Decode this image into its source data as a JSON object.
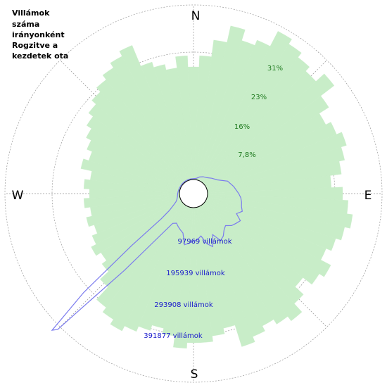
{
  "chart_data": {
    "type": "polar",
    "title_lines": [
      "Villámok",
      "száma",
      "irányonként",
      "Rogzitve a",
      "kezdetek ota"
    ],
    "directions": [
      "N",
      "E",
      "S",
      "W"
    ],
    "percent_ring_labels": [
      "7,8%",
      "16%",
      "23%",
      "31%"
    ],
    "count_ring_labels": [
      "97969 villámok",
      "195939 villámok",
      "293908 villámok",
      "391877 villámok"
    ],
    "percent_ring_values": [
      7.8,
      16,
      23,
      31
    ],
    "count_ring_values": [
      97969,
      195939,
      293908,
      391877
    ],
    "colors": {
      "percent_fill": "#c8edc8",
      "percent_label": "#1e7a1e",
      "count_line": "#7b7bee",
      "count_label": "#1a1acc",
      "grid": "#999999"
    },
    "grid": true,
    "series": [
      {
        "name": "",
        "kind": "percent-area",
        "angle_step_deg": 5,
        "angles_deg": [
          0,
          5,
          10,
          15,
          20,
          25,
          30,
          35,
          40,
          45,
          50,
          55,
          60,
          65,
          70,
          75,
          80,
          85,
          90,
          95,
          100,
          105,
          110,
          115,
          120,
          125,
          130,
          135,
          140,
          145,
          150,
          155,
          160,
          165,
          170,
          175,
          180,
          185,
          190,
          195,
          200,
          205,
          210,
          215,
          220,
          225,
          230,
          235,
          240,
          245,
          250,
          255,
          260,
          265,
          270,
          275,
          280,
          285,
          290,
          295,
          300,
          305,
          310,
          315,
          320,
          325,
          330,
          335,
          340,
          345,
          350,
          355
        ],
        "values": [
          20,
          22,
          25,
          28,
          26,
          27,
          30,
          29,
          28,
          27,
          29,
          26,
          24,
          25,
          26,
          25,
          24,
          22,
          24,
          25,
          26,
          25,
          24,
          23,
          25,
          24,
          22,
          24,
          26,
          25,
          24,
          25,
          26,
          22,
          23,
          24,
          24,
          25,
          23,
          22,
          23,
          24,
          25,
          24,
          23,
          20,
          18,
          17,
          18,
          17,
          16,
          17,
          16,
          17,
          16,
          17,
          16,
          18,
          17,
          18,
          19,
          20,
          21,
          22,
          23,
          24,
          25,
          26,
          22,
          21,
          20,
          22
        ]
      },
      {
        "name": "",
        "kind": "count-line",
        "angles_deg": [
          0,
          10,
          20,
          30,
          40,
          50,
          60,
          70,
          80,
          90,
          95,
          100,
          105,
          110,
          115,
          120,
          125,
          130,
          135,
          140,
          145,
          150,
          155,
          160,
          165,
          170,
          175,
          180,
          185,
          190,
          195,
          200,
          205,
          210,
          215,
          220,
          222,
          224,
          225,
          226,
          228,
          230,
          232,
          235,
          240,
          245,
          250,
          260,
          270,
          280,
          290,
          300,
          310,
          320,
          330,
          340,
          350
        ],
        "values": [
          2000,
          3000,
          8000,
          12000,
          15000,
          22000,
          30000,
          50000,
          60000,
          70000,
          75000,
          78000,
          80000,
          85000,
          75000,
          90000,
          85000,
          80000,
          70000,
          75000,
          85000,
          90000,
          70000,
          95000,
          85000,
          65000,
          72000,
          75000,
          80000,
          85000,
          60000,
          55000,
          50000,
          45000,
          50000,
          120000,
          200000,
          300000,
          400000,
          410000,
          300000,
          150000,
          60000,
          35000,
          20000,
          12000,
          8000,
          5000,
          4000,
          3000,
          2500,
          2000,
          2000,
          2000,
          2000,
          2000,
          2000
        ]
      }
    ]
  }
}
